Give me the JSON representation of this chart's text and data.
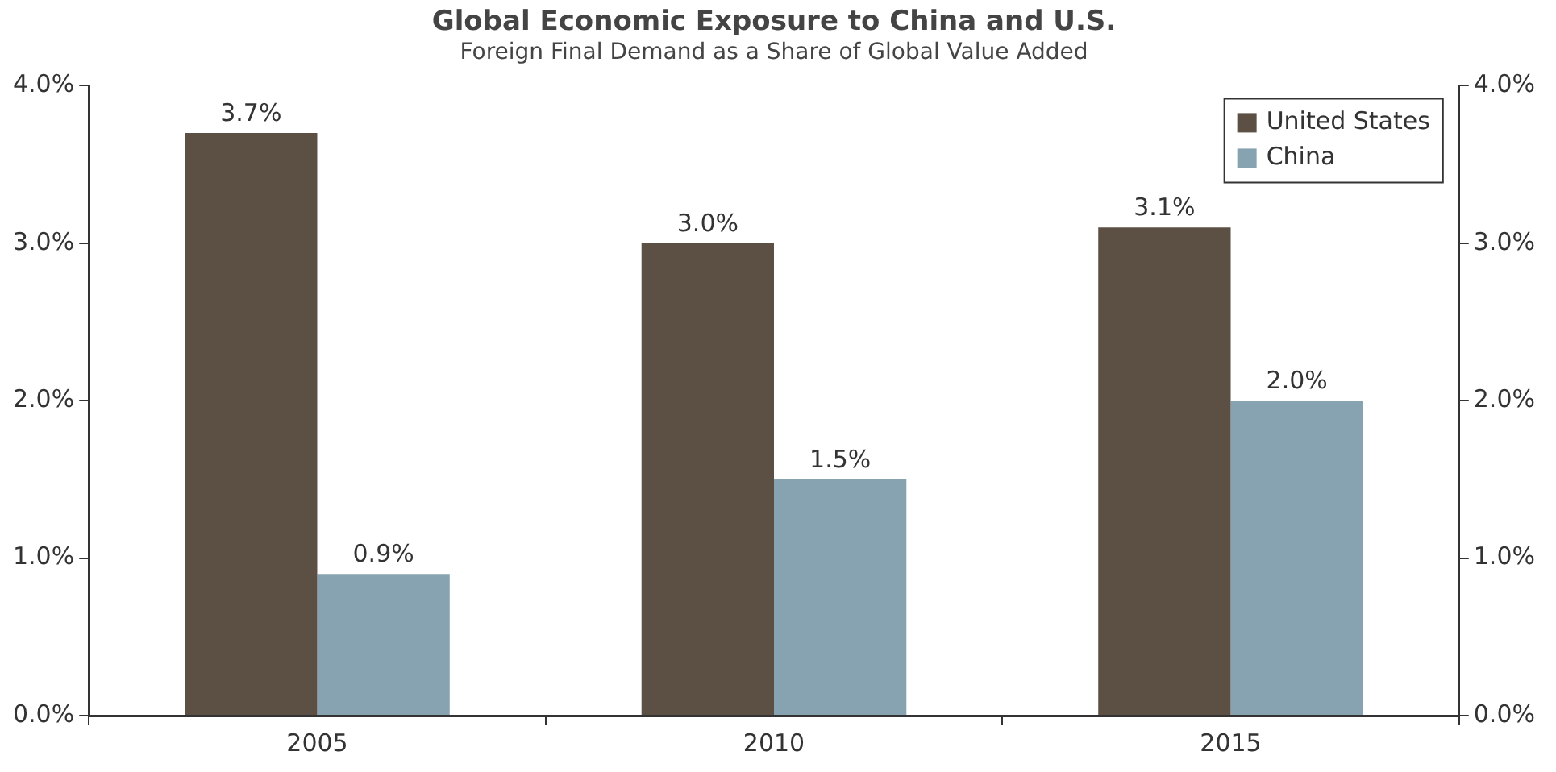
{
  "chart_data": {
    "type": "bar",
    "title": "Global Economic Exposure to China and U.S.",
    "subtitle": "Foreign Final Demand as a Share of Global Value Added",
    "categories": [
      "2005",
      "2010",
      "2015"
    ],
    "series": [
      {
        "name": "United States",
        "color": "#5c4f44",
        "values": [
          3.7,
          3.0,
          3.1
        ],
        "value_labels": [
          "3.7%",
          "3.0%",
          "3.1%"
        ]
      },
      {
        "name": "China",
        "color": "#87a2b1",
        "values": [
          0.9,
          1.5,
          2.0
        ],
        "value_labels": [
          "0.9%",
          "1.5%",
          "2.0%"
        ]
      }
    ],
    "ylim": [
      0,
      4
    ],
    "yticks": [
      {
        "value": 0,
        "label": "0.0%"
      },
      {
        "value": 1,
        "label": "1.0%"
      },
      {
        "value": 2,
        "label": "2.0%"
      },
      {
        "value": 3,
        "label": "3.0%"
      },
      {
        "value": 4,
        "label": "4.0%"
      }
    ],
    "y2lim": [
      0,
      4
    ],
    "y2ticks": [
      {
        "value": 0,
        "label": "0.0%"
      },
      {
        "value": 1,
        "label": "1.0%"
      },
      {
        "value": 2,
        "label": "2.0%"
      },
      {
        "value": 3,
        "label": "3.0%"
      },
      {
        "value": 4,
        "label": "4.0%"
      }
    ],
    "grid": false,
    "legend": "top right"
  }
}
